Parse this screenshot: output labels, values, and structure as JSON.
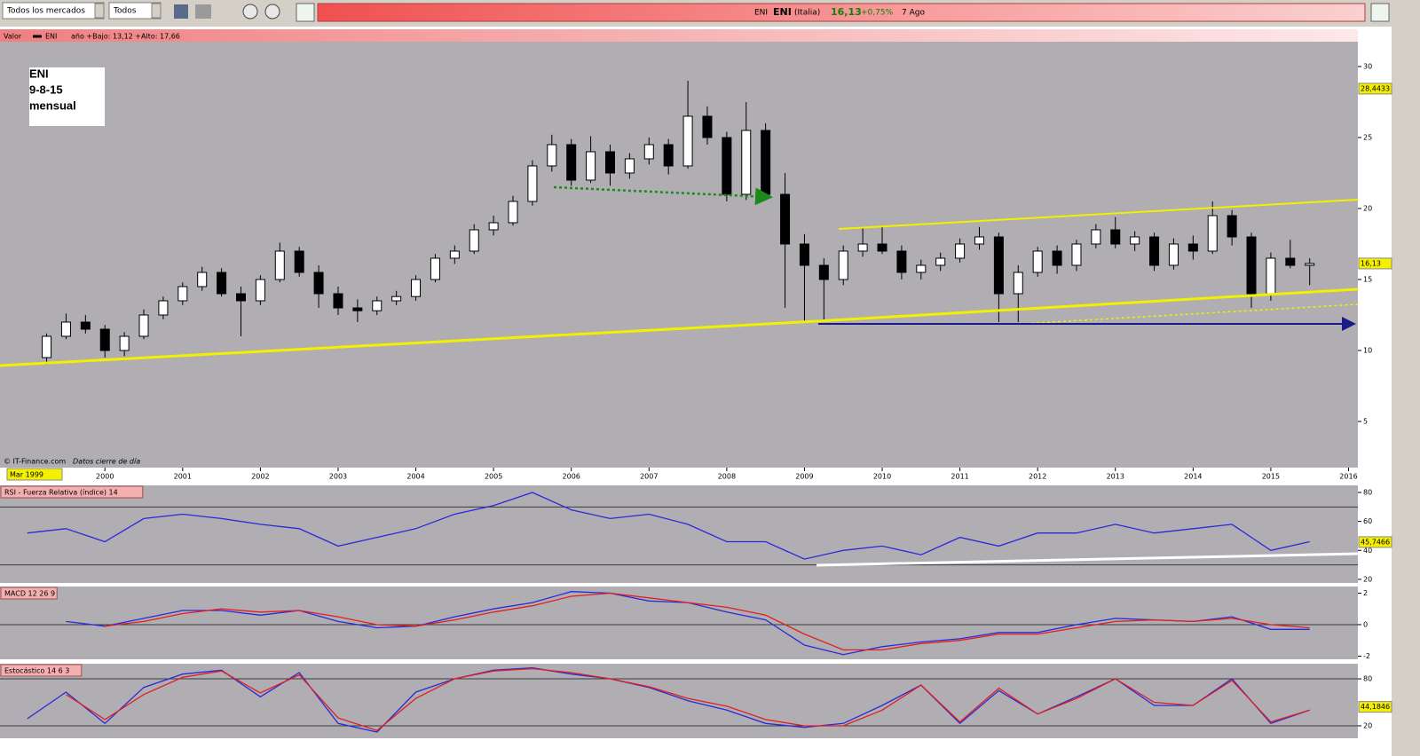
{
  "toolbar": {
    "market": "Todos los mercados",
    "filter": "Todos"
  },
  "quote": {
    "name": "ENI",
    "symbol": "ENI",
    "country": "(Italia)",
    "price": "16,13",
    "change": "+0,75%",
    "date": "7 Ago"
  },
  "chart_data": [
    {
      "type": "candlestick",
      "legend_label": "Valor",
      "series_name": "ENI",
      "subtitle": "año +Bajo: 13,12 +Alto: 17,66",
      "annotation": [
        "ENI",
        "9-8-15",
        "mensual"
      ],
      "source": "© IT-Finance.com",
      "note": "Datos cierre de día",
      "cursor_label": "Mar 1999",
      "x": [
        1999.25,
        1999.5,
        1999.75,
        2000.0,
        2000.25,
        2000.5,
        2000.75,
        2001.0,
        2001.25,
        2001.5,
        2001.75,
        2002.0,
        2002.25,
        2002.5,
        2002.75,
        2003.0,
        2003.25,
        2003.5,
        2003.75,
        2004.0,
        2004.25,
        2004.5,
        2004.75,
        2005.0,
        2005.25,
        2005.5,
        2005.75,
        2006.0,
        2006.25,
        2006.5,
        2006.75,
        2007.0,
        2007.25,
        2007.5,
        2007.75,
        2008.0,
        2008.25,
        2008.5,
        2008.75,
        2009.0,
        2009.25,
        2009.5,
        2009.75,
        2010.0,
        2010.25,
        2010.5,
        2010.75,
        2011.0,
        2011.25,
        2011.5,
        2011.75,
        2012.0,
        2012.25,
        2012.5,
        2012.75,
        2013.0,
        2013.25,
        2013.5,
        2013.75,
        2014.0,
        2014.25,
        2014.5,
        2014.75,
        2015.0,
        2015.25,
        2015.5
      ],
      "open": [
        9.5,
        11,
        12,
        11.5,
        10,
        11,
        12.5,
        13.5,
        14.5,
        15.5,
        14,
        13.5,
        15,
        17,
        15.5,
        14,
        13,
        12.8,
        13.5,
        13.8,
        15,
        16.5,
        17,
        18.5,
        19,
        20.5,
        23,
        24.5,
        22,
        24,
        22.5,
        23.5,
        24.5,
        23,
        26.5,
        25,
        21,
        25.5,
        21,
        17.5,
        16,
        15,
        17,
        17.5,
        17,
        15.5,
        16,
        16.5,
        17.5,
        18,
        14,
        15.5,
        17,
        16,
        17.5,
        18.5,
        17.5,
        18,
        16,
        17.5,
        17,
        19.5,
        18,
        14,
        16.5,
        16
      ],
      "high": [
        11.2,
        12.6,
        12.5,
        11.8,
        11.3,
        12.9,
        13.8,
        14.8,
        15.9,
        15.8,
        14.5,
        15.3,
        17.6,
        17.3,
        16,
        14.5,
        13.6,
        13.8,
        14.2,
        15.3,
        16.8,
        17.4,
        18.9,
        19.5,
        20.9,
        23.4,
        25.2,
        24.9,
        25.1,
        24.5,
        23.9,
        25,
        24.9,
        29,
        27.2,
        25.4,
        27.5,
        26,
        22.5,
        18.2,
        16.5,
        17.4,
        18.6,
        18.8,
        17.4,
        16.4,
        16.9,
        17.9,
        18.7,
        18.3,
        16,
        17.3,
        17.4,
        17.8,
        18.9,
        19.4,
        18.4,
        18.3,
        17.9,
        18.1,
        20.5,
        19.9,
        18.3,
        16.9,
        17.8,
        16.5
      ],
      "low": [
        9,
        10.8,
        11.2,
        9.5,
        9.6,
        10.8,
        12.2,
        13.2,
        14.2,
        13.8,
        11,
        13.2,
        14.8,
        15.2,
        13,
        12.5,
        12,
        12.5,
        13.2,
        13.5,
        14.8,
        16.1,
        16.8,
        18.1,
        18.8,
        20.2,
        22.6,
        21.6,
        21.8,
        21.6,
        22.1,
        23.1,
        22.4,
        22.8,
        24.5,
        20.5,
        20.6,
        20.7,
        13,
        12,
        12,
        14.6,
        16.6,
        16.8,
        15,
        15,
        15.6,
        16.2,
        17.1,
        12,
        12,
        15.2,
        15.4,
        15.6,
        17.2,
        17.2,
        17,
        15.6,
        15.7,
        16.4,
        16.8,
        17.4,
        13,
        13.5,
        15.8,
        14.6
      ],
      "close": [
        11,
        12,
        11.5,
        10,
        11,
        12.5,
        13.5,
        14.5,
        15.5,
        14,
        13.5,
        15,
        17,
        15.5,
        14,
        13,
        12.8,
        13.5,
        13.8,
        15,
        16.5,
        17,
        18.5,
        19,
        20.5,
        23,
        24.5,
        22,
        24,
        22.5,
        23.5,
        24.5,
        23,
        26.5,
        25,
        21,
        25.5,
        21,
        17.5,
        16,
        15,
        17,
        17.5,
        17,
        15.5,
        16,
        16.5,
        17.5,
        18,
        14,
        15.5,
        17,
        16,
        17.5,
        18.5,
        17.5,
        18,
        16,
        17.5,
        17,
        19.5,
        18,
        14,
        16.5,
        16,
        16.13
      ],
      "xlim": [
        1998.65,
        2016.12
      ],
      "xticks": [
        2000,
        2001,
        2002,
        2003,
        2004,
        2005,
        2006,
        2007,
        2008,
        2009,
        2010,
        2011,
        2012,
        2013,
        2014,
        2015,
        2016
      ],
      "ylim": [
        1.75,
        31.75
      ],
      "yticks": [
        5,
        10,
        15,
        20,
        25,
        30
      ],
      "markers": [
        {
          "value": 28.4433,
          "label": "28,4433"
        },
        {
          "value": 16.13,
          "label": "16,13"
        }
      ]
    },
    {
      "type": "line",
      "title": "RSI - Fuerza Relativa (índice) 14",
      "x": [
        1999.0,
        1999.5,
        2000.0,
        2000.5,
        2001.0,
        2001.5,
        2002.0,
        2002.5,
        2003.0,
        2003.5,
        2004.0,
        2004.5,
        2005.0,
        2005.5,
        2006.0,
        2006.5,
        2007.0,
        2007.5,
        2008.0,
        2008.5,
        2009.0,
        2009.5,
        2010.0,
        2010.5,
        2011.0,
        2011.5,
        2012.0,
        2012.5,
        2013.0,
        2013.5,
        2014.0,
        2014.5,
        2015.0,
        2015.5
      ],
      "series": [
        {
          "color": "#2a2ad8",
          "values": [
            52,
            55,
            46,
            62,
            65,
            62,
            58,
            55,
            43,
            49,
            55,
            65,
            71,
            80,
            68,
            62,
            65,
            58,
            46,
            46,
            34,
            40,
            43,
            37,
            49,
            43,
            52,
            52,
            58,
            52,
            55,
            58,
            40,
            46
          ]
        }
      ],
      "xlim": [
        1998.65,
        2016.12
      ],
      "ylim": [
        17.5,
        84.9
      ],
      "yticks": [
        20,
        40,
        60,
        80
      ],
      "levels": [
        70,
        30
      ],
      "markers": [
        {
          "value": 45.7466,
          "label": "45,7466"
        }
      ]
    },
    {
      "type": "line",
      "title": "MACD 12 26 9",
      "x": [
        1999.0,
        1999.5,
        2000.0,
        2000.5,
        2001.0,
        2001.5,
        2002.0,
        2002.5,
        2003.0,
        2003.5,
        2004.0,
        2004.5,
        2005.0,
        2005.5,
        2006.0,
        2006.5,
        2007.0,
        2007.5,
        2008.0,
        2008.5,
        2009.0,
        2009.5,
        2010.0,
        2010.5,
        2011.0,
        2011.5,
        2012.0,
        2012.5,
        2013.0,
        2013.5,
        2014.0,
        2014.5,
        2015.0,
        2015.5
      ],
      "series": [
        {
          "color": "#2a2ad8",
          "values": [
            null,
            0.2,
            -0.1,
            0.4,
            0.9,
            0.9,
            0.6,
            0.9,
            0.2,
            -0.2,
            -0.1,
            0.5,
            1.0,
            1.4,
            2.1,
            2.0,
            1.5,
            1.4,
            0.8,
            0.3,
            -1.3,
            -1.9,
            -1.4,
            -1.1,
            -0.9,
            -0.5,
            -0.5,
            0.0,
            0.4,
            0.3,
            0.2,
            0.5,
            -0.3,
            -0.3
          ]
        },
        {
          "color": "#e02020",
          "values": [
            null,
            null,
            -0.1,
            0.2,
            0.7,
            1.0,
            0.8,
            0.9,
            0.5,
            0,
            -0.1,
            0.3,
            0.8,
            1.2,
            1.8,
            2.0,
            1.7,
            1.4,
            1.1,
            0.6,
            -0.6,
            -1.6,
            -1.6,
            -1.2,
            -1.0,
            -0.6,
            -0.6,
            -0.2,
            0.2,
            0.3,
            0.2,
            0.4,
            0,
            -0.2
          ]
        }
      ],
      "xlim": [
        1998.65,
        2016.12
      ],
      "ylim": [
        -2.2,
        2.42
      ],
      "yticks": [
        -2,
        0,
        2
      ],
      "levels": [
        0
      ]
    },
    {
      "type": "line",
      "title": "Estocástico 14 6 3",
      "x": [
        1999.0,
        1999.5,
        2000.0,
        2000.5,
        2001.0,
        2001.5,
        2002.0,
        2002.5,
        2003.0,
        2003.5,
        2004.0,
        2004.5,
        2005.0,
        2005.5,
        2006.0,
        2006.5,
        2007.0,
        2007.5,
        2008.0,
        2008.5,
        2009.0,
        2009.5,
        2010.0,
        2010.5,
        2011.0,
        2011.5,
        2012.0,
        2012.5,
        2013.0,
        2013.5,
        2014.0,
        2014.5,
        2015.0,
        2015.5
      ],
      "series": [
        {
          "color": "#2a2ad8",
          "values": [
            29,
            63,
            23,
            69,
            86,
            91,
            57,
            88,
            23,
            12,
            63,
            80,
            91,
            94,
            86,
            80,
            69,
            52,
            40,
            23,
            18,
            23,
            46,
            72,
            23,
            65,
            35,
            57,
            80,
            46,
            46,
            80,
            23,
            40
          ]
        },
        {
          "color": "#e02020",
          "values": [
            null,
            60,
            28,
            60,
            82,
            90,
            62,
            85,
            30,
            14,
            55,
            80,
            90,
            93,
            88,
            80,
            70,
            55,
            45,
            28,
            20,
            20,
            40,
            72,
            25,
            68,
            35,
            55,
            80,
            50,
            46,
            78,
            25,
            40
          ]
        }
      ],
      "xlim": [
        1998.65,
        2016.12
      ],
      "ylim": [
        4.1,
        99.3
      ],
      "yticks": [
        20,
        80
      ],
      "levels": [
        80,
        20
      ],
      "markers": [
        {
          "value": 44.1846,
          "label": "44,1846"
        }
      ]
    }
  ]
}
